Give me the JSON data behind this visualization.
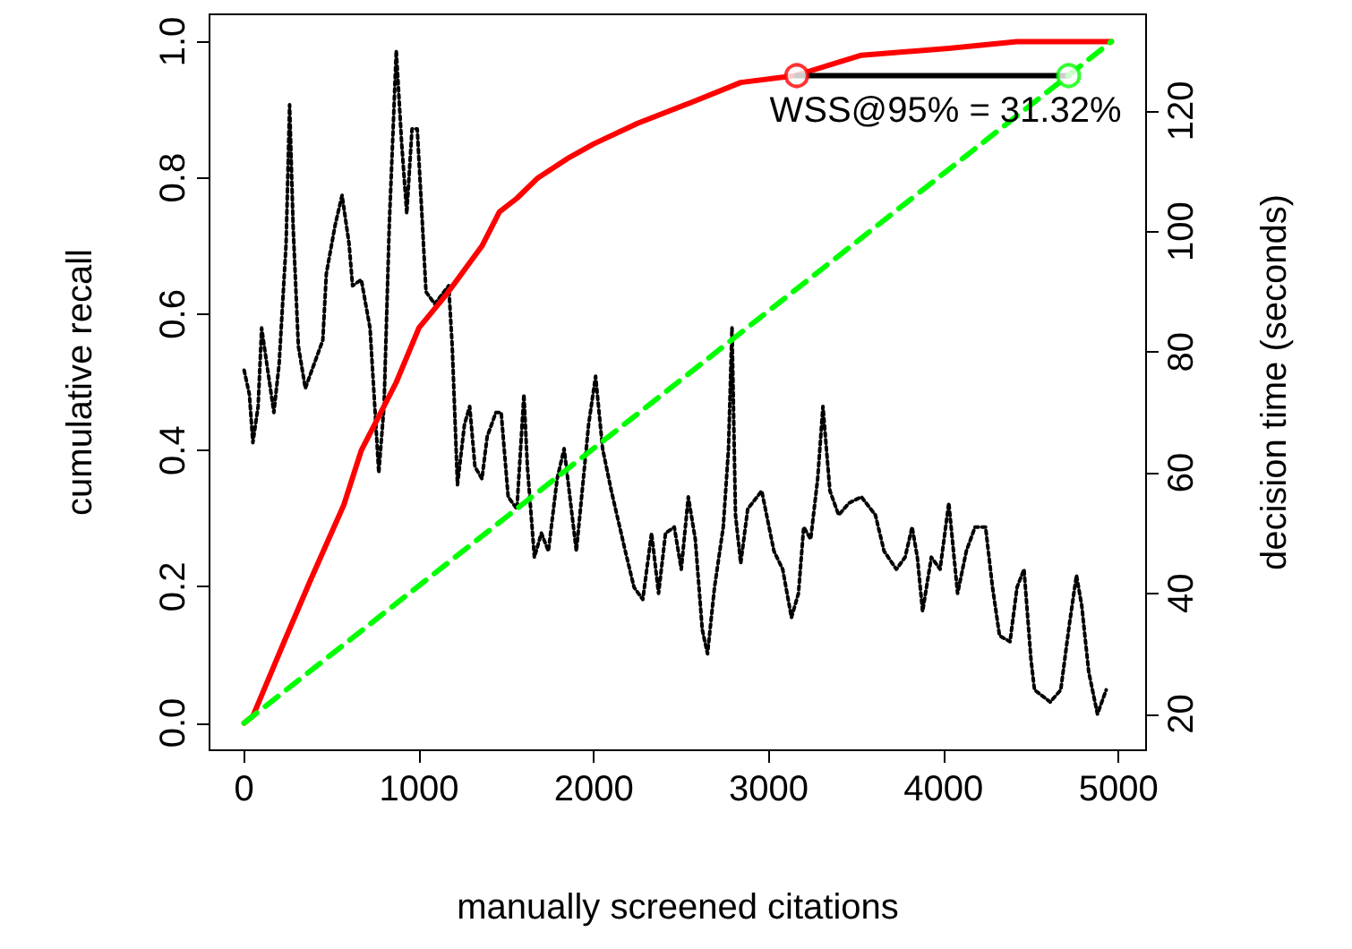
{
  "chart_data": {
    "type": "line",
    "xlabel": "manually screened citations",
    "ylabel": "cumulative recall",
    "y2label": "decision time (seconds)",
    "xlim": [
      -198,
      5158
    ],
    "xticks": [
      0,
      1000,
      2000,
      3000,
      4000,
      5000
    ],
    "ylim": [
      -0.04,
      1.04
    ],
    "yticks": [
      {
        "value": 0,
        "label": "0.0"
      },
      {
        "value": 0.2,
        "label": "0.2"
      },
      {
        "value": 0.4,
        "label": "0.4"
      },
      {
        "value": 0.6,
        "label": "0.6"
      },
      {
        "value": 0.8,
        "label": "0.8"
      },
      {
        "value": 1,
        "label": "1.0"
      }
    ],
    "y2lim": [
      14,
      136
    ],
    "y2ticks": [
      20,
      40,
      60,
      80,
      100,
      120
    ],
    "annotations": [
      "WSS@95% = 31.32%"
    ],
    "series": [
      {
        "color": "#000000",
        "axis": "y2",
        "line_style": "dotted",
        "marker": "none",
        "x": [
          0,
          30,
          50,
          80,
          100,
          140,
          170,
          200,
          240,
          260,
          280,
          310,
          350,
          400,
          450,
          470,
          520,
          560,
          600,
          620,
          670,
          720,
          770,
          800,
          830,
          870,
          900,
          930,
          960,
          990,
          1020,
          1040,
          1090,
          1170,
          1190,
          1220,
          1260,
          1290,
          1320,
          1360,
          1390,
          1440,
          1470,
          1510,
          1560,
          1600,
          1620,
          1660,
          1700,
          1740,
          1790,
          1830,
          1900,
          1940,
          1970,
          2010,
          2050,
          2100,
          2180,
          2230,
          2280,
          2330,
          2370,
          2410,
          2460,
          2500,
          2540,
          2580,
          2620,
          2650,
          2690,
          2740,
          2770,
          2790,
          2810,
          2840,
          2880,
          2960,
          3030,
          3080,
          3130,
          3170,
          3200,
          3240,
          3280,
          3310,
          3350,
          3400,
          3460,
          3530,
          3610,
          3660,
          3730,
          3780,
          3820,
          3850,
          3880,
          3930,
          3980,
          4030,
          4080,
          4130,
          4180,
          4240,
          4280,
          4320,
          4380,
          4420,
          4460,
          4500,
          4520,
          4610,
          4670,
          4720,
          4760,
          4790,
          4830,
          4880,
          4930
        ],
        "values": [
          77,
          73,
          65,
          71,
          84,
          76,
          70,
          78,
          98,
          121,
          101,
          81,
          74,
          78,
          82,
          93,
          101,
          106,
          98,
          91,
          92,
          84,
          60,
          71,
          101,
          130,
          115,
          103,
          117,
          117,
          101,
          90,
          88,
          91,
          81,
          58,
          68,
          71,
          61,
          59,
          66,
          70,
          70,
          56,
          54,
          73,
          61,
          46,
          50,
          47,
          59,
          64,
          47,
          59,
          68,
          76,
          64,
          57,
          47,
          41,
          39,
          50,
          40,
          50,
          51,
          44,
          56,
          49,
          34,
          30,
          41,
          51,
          64,
          84,
          53,
          45,
          54,
          57,
          47,
          44,
          36,
          40,
          51,
          49,
          59,
          71,
          57,
          53,
          55,
          56,
          53,
          47,
          44,
          46,
          51,
          46,
          37,
          46,
          44,
          55,
          40,
          47,
          51,
          51,
          41,
          33,
          32,
          41,
          44,
          29,
          24,
          22,
          24,
          35,
          43,
          38,
          27,
          20,
          24
        ]
      },
      {
        "color": "#00ff00",
        "line_style": "dashed",
        "marker": "none",
        "x": [
          0,
          4960
        ],
        "values": [
          0,
          1
        ]
      },
      {
        "color": "#ff0000",
        "line_style": "solid",
        "marker": "none",
        "x": [
          0,
          50,
          230,
          380,
          570,
          670,
          770,
          870,
          1000,
          1160,
          1360,
          1460,
          1560,
          1680,
          1860,
          2000,
          2250,
          2550,
          2840,
          3150,
          3530,
          4030,
          4420,
          4960
        ],
        "values": [
          0,
          0.01,
          0.12,
          0.21,
          0.32,
          0.4,
          0.45,
          0.5,
          0.58,
          0.63,
          0.7,
          0.75,
          0.77,
          0.8,
          0.83,
          0.85,
          0.88,
          0.91,
          0.94,
          0.95,
          0.98,
          0.99,
          1,
          1
        ]
      },
      {
        "color": "#000000",
        "line_style": "solid",
        "marker": "none",
        "x": [
          3160,
          4715
        ],
        "values": [
          0.95,
          0.95
        ]
      },
      {
        "type": "scatter",
        "color": "#ff0000",
        "marker": "circle",
        "x": [
          3160
        ],
        "values": [
          0.95
        ]
      },
      {
        "type": "scatter",
        "color": "#00ff00",
        "marker": "circle",
        "x": [
          4715
        ],
        "values": [
          0.95
        ]
      }
    ]
  }
}
